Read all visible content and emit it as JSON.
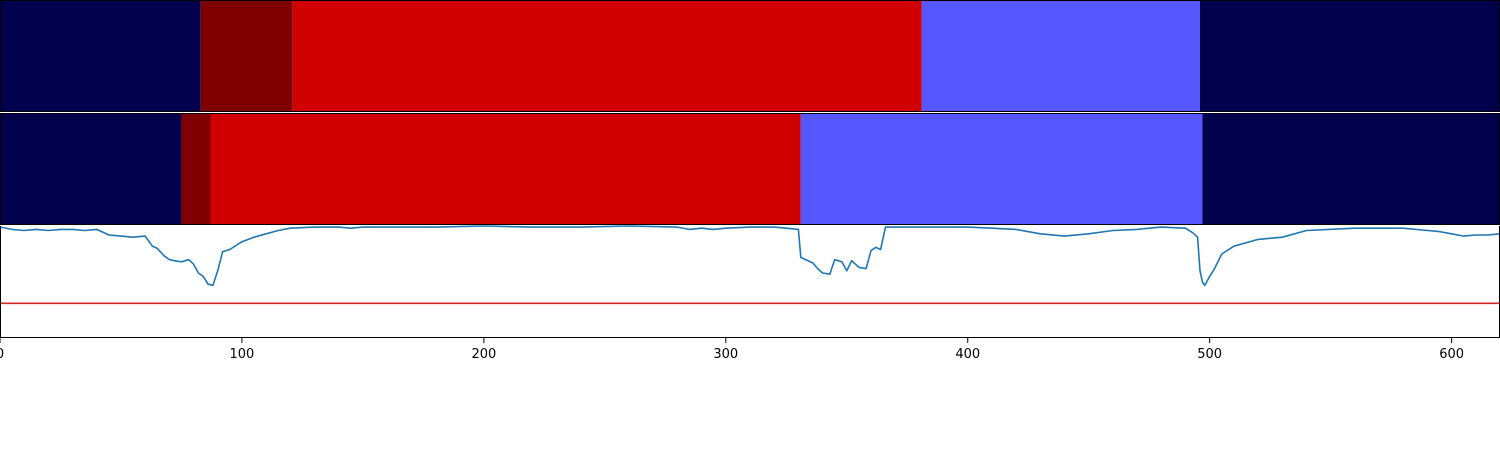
{
  "chart_data": [
    {
      "type": "segment-bar",
      "panel": "top",
      "xlim": [
        0,
        620
      ],
      "segments": [
        {
          "start": 0,
          "end": 83,
          "color": "#00004c"
        },
        {
          "start": 83,
          "end": 121,
          "color": "#7f0000"
        },
        {
          "start": 121,
          "end": 381,
          "color": "#d00000"
        },
        {
          "start": 381,
          "end": 496,
          "color": "#5757ff"
        },
        {
          "start": 496,
          "end": 620,
          "color": "#00004c"
        }
      ]
    },
    {
      "type": "segment-bar",
      "panel": "middle",
      "xlim": [
        0,
        620
      ],
      "segments": [
        {
          "start": 0,
          "end": 75,
          "color": "#00004c"
        },
        {
          "start": 75,
          "end": 87,
          "color": "#7f0000"
        },
        {
          "start": 87,
          "end": 331,
          "color": "#d00000"
        },
        {
          "start": 331,
          "end": 497,
          "color": "#5757ff"
        },
        {
          "start": 497,
          "end": 620,
          "color": "#00004c"
        }
      ]
    },
    {
      "type": "line",
      "panel": "bottom",
      "xlim": [
        0,
        620
      ],
      "ylim": [
        0,
        1
      ],
      "line_color": "#1f77b4",
      "threshold": {
        "y": 0.31,
        "color": "#d62728"
      },
      "x": [
        0,
        5,
        10,
        15,
        20,
        25,
        30,
        35,
        40,
        45,
        50,
        55,
        60,
        63,
        65,
        68,
        70,
        72,
        75,
        78,
        80,
        82,
        84,
        86,
        88,
        90,
        92,
        95,
        100,
        105,
        110,
        115,
        120,
        130,
        140,
        145,
        150,
        160,
        180,
        200,
        220,
        240,
        260,
        280,
        285,
        290,
        295,
        300,
        310,
        320,
        325,
        330,
        331,
        333,
        336,
        338,
        340,
        343,
        345,
        348,
        350,
        352,
        355,
        358,
        360,
        362,
        364,
        366,
        370,
        380,
        390,
        400,
        410,
        420,
        430,
        440,
        450,
        460,
        470,
        480,
        490,
        493,
        495,
        496,
        497,
        498,
        500,
        502,
        505,
        510,
        520,
        530,
        540,
        560,
        580,
        590,
        595,
        600,
        605,
        610,
        615,
        620
      ],
      "y": [
        0.99,
        0.97,
        0.96,
        0.97,
        0.96,
        0.97,
        0.97,
        0.96,
        0.97,
        0.92,
        0.91,
        0.9,
        0.91,
        0.82,
        0.8,
        0.73,
        0.7,
        0.69,
        0.68,
        0.7,
        0.66,
        0.58,
        0.55,
        0.48,
        0.47,
        0.6,
        0.77,
        0.79,
        0.86,
        0.9,
        0.93,
        0.96,
        0.98,
        0.99,
        0.99,
        0.98,
        0.99,
        0.99,
        0.99,
        1.0,
        0.99,
        0.99,
        1.0,
        0.99,
        0.97,
        0.98,
        0.97,
        0.98,
        0.99,
        0.99,
        0.98,
        0.97,
        0.72,
        0.7,
        0.67,
        0.62,
        0.58,
        0.57,
        0.7,
        0.68,
        0.6,
        0.69,
        0.63,
        0.62,
        0.78,
        0.81,
        0.79,
        0.99,
        0.99,
        0.99,
        0.99,
        0.99,
        0.98,
        0.97,
        0.93,
        0.91,
        0.93,
        0.96,
        0.97,
        0.99,
        0.98,
        0.94,
        0.9,
        0.6,
        0.5,
        0.47,
        0.55,
        0.62,
        0.75,
        0.82,
        0.88,
        0.9,
        0.96,
        0.98,
        0.98,
        0.96,
        0.95,
        0.93,
        0.91,
        0.92,
        0.92,
        0.93
      ]
    }
  ],
  "x_axis": {
    "ticks": [
      0,
      100,
      200,
      300,
      400,
      500,
      600
    ],
    "tick_labels": [
      "0",
      "100",
      "200",
      "300",
      "400",
      "500",
      "600"
    ]
  }
}
